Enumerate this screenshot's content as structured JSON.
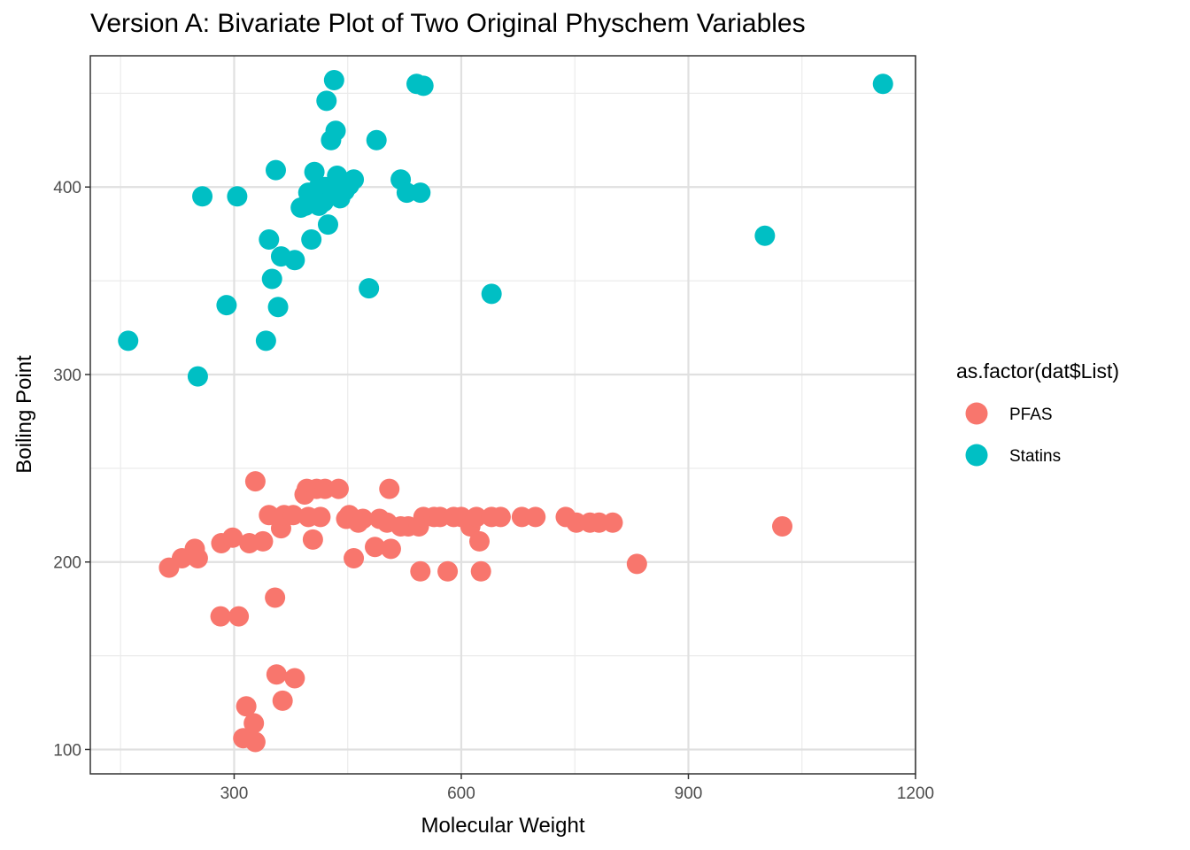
{
  "chart_data": {
    "type": "scatter",
    "title": "Version A: Bivariate Plot of Two Original Physchem Variables",
    "xlabel": "Molecular Weight",
    "ylabel": "Boiling Point",
    "xlim": [
      110,
      1200
    ],
    "ylim": [
      87,
      470
    ],
    "x_ticks": [
      300,
      600,
      900,
      1200
    ],
    "y_ticks": [
      100,
      200,
      300,
      400
    ],
    "x_minor": [
      150,
      450,
      750,
      1050
    ],
    "y_minor": [
      150,
      250,
      350,
      450
    ],
    "grid": true,
    "legend": {
      "title": "as.factor(dat$List)",
      "position": "right"
    },
    "series": [
      {
        "name": "PFAS",
        "color": "#F8766D",
        "points": [
          [
            214,
            197
          ],
          [
            231,
            202
          ],
          [
            248,
            207
          ],
          [
            252,
            202
          ],
          [
            283,
            210
          ],
          [
            298,
            213
          ],
          [
            320,
            210
          ],
          [
            338,
            211
          ],
          [
            328,
            243
          ],
          [
            346,
            225
          ],
          [
            362,
            218
          ],
          [
            366,
            225
          ],
          [
            378,
            225
          ],
          [
            393,
            236
          ],
          [
            396,
            239
          ],
          [
            398,
            224
          ],
          [
            404,
            212
          ],
          [
            409,
            239
          ],
          [
            414,
            224
          ],
          [
            420,
            239
          ],
          [
            438,
            239
          ],
          [
            448,
            223
          ],
          [
            452,
            225
          ],
          [
            458,
            202
          ],
          [
            464,
            221
          ],
          [
            470,
            223
          ],
          [
            486,
            208
          ],
          [
            492,
            223
          ],
          [
            502,
            221
          ],
          [
            505,
            239
          ],
          [
            507,
            207
          ],
          [
            520,
            219
          ],
          [
            530,
            219
          ],
          [
            544,
            219
          ],
          [
            546,
            195
          ],
          [
            550,
            224
          ],
          [
            564,
            224
          ],
          [
            572,
            224
          ],
          [
            582,
            195
          ],
          [
            590,
            224
          ],
          [
            600,
            224
          ],
          [
            612,
            219
          ],
          [
            620,
            224
          ],
          [
            624,
            211
          ],
          [
            626,
            195
          ],
          [
            640,
            224
          ],
          [
            652,
            224
          ],
          [
            680,
            224
          ],
          [
            698,
            224
          ],
          [
            738,
            224
          ],
          [
            752,
            221
          ],
          [
            770,
            221
          ],
          [
            782,
            221
          ],
          [
            800,
            221
          ],
          [
            832,
            199
          ],
          [
            1024,
            219
          ],
          [
            282,
            171
          ],
          [
            306,
            171
          ],
          [
            354,
            181
          ],
          [
            356,
            140
          ],
          [
            364,
            126
          ],
          [
            380,
            138
          ],
          [
            316,
            123
          ],
          [
            312,
            106
          ],
          [
            326,
            114
          ],
          [
            328,
            104
          ]
        ]
      },
      {
        "name": "Statins",
        "color": "#00BFC4",
        "points": [
          [
            160,
            318
          ],
          [
            252,
            299
          ],
          [
            258,
            395
          ],
          [
            290,
            337
          ],
          [
            304,
            395
          ],
          [
            342,
            318
          ],
          [
            346,
            372
          ],
          [
            350,
            351
          ],
          [
            355,
            409
          ],
          [
            358,
            336
          ],
          [
            362,
            363
          ],
          [
            380,
            361
          ],
          [
            388,
            389
          ],
          [
            394,
            390
          ],
          [
            398,
            397
          ],
          [
            402,
            372
          ],
          [
            406,
            408
          ],
          [
            412,
            390
          ],
          [
            418,
            392
          ],
          [
            422,
            446
          ],
          [
            424,
            380
          ],
          [
            428,
            425
          ],
          [
            432,
            457
          ],
          [
            434,
            430
          ],
          [
            436,
            406
          ],
          [
            440,
            394
          ],
          [
            446,
            398
          ],
          [
            452,
            401
          ],
          [
            458,
            404
          ],
          [
            478,
            346
          ],
          [
            488,
            425
          ],
          [
            520,
            404
          ],
          [
            528,
            397
          ],
          [
            541,
            455
          ],
          [
            546,
            397
          ],
          [
            550,
            454
          ],
          [
            640,
            343
          ],
          [
            1001,
            374
          ],
          [
            1157,
            455
          ],
          [
            420,
            400
          ],
          [
            410,
            399
          ],
          [
            430,
            398
          ]
        ]
      }
    ]
  }
}
